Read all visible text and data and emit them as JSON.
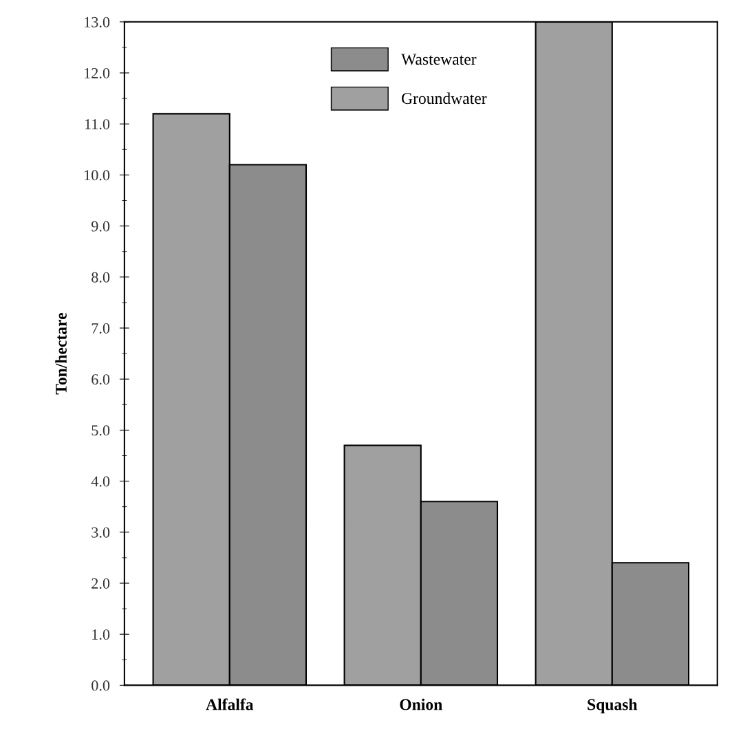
{
  "chart_data": {
    "type": "bar",
    "ylabel": "Ton/hectare",
    "categories": [
      "Alfalfa",
      "Onion",
      "Squash"
    ],
    "series": [
      {
        "name": "Groundwater",
        "color": "#a0a0a0",
        "values": [
          11.2,
          4.7,
          13.0
        ]
      },
      {
        "name": "Wastewater",
        "color": "#8c8c8c",
        "values": [
          10.2,
          3.6,
          2.4
        ]
      }
    ],
    "ylim": [
      0,
      13
    ],
    "yticks": [
      {
        "value": 0,
        "label": "0.0"
      },
      {
        "value": 1,
        "label": "1.0"
      },
      {
        "value": 2,
        "label": "2.0"
      },
      {
        "value": 3,
        "label": "3.0"
      },
      {
        "value": 4,
        "label": "4.0"
      },
      {
        "value": 5,
        "label": "5.0"
      },
      {
        "value": 6,
        "label": "6.0"
      },
      {
        "value": 7,
        "label": "7.0"
      },
      {
        "value": 8,
        "label": "8.0"
      },
      {
        "value": 9,
        "label": "9.0"
      },
      {
        "value": 10,
        "label": "10.0"
      },
      {
        "value": 11,
        "label": "11.0"
      },
      {
        "value": 12,
        "label": "12.0"
      },
      {
        "value": 13,
        "label": "13.0"
      }
    ],
    "grid": false,
    "legend": "top"
  }
}
